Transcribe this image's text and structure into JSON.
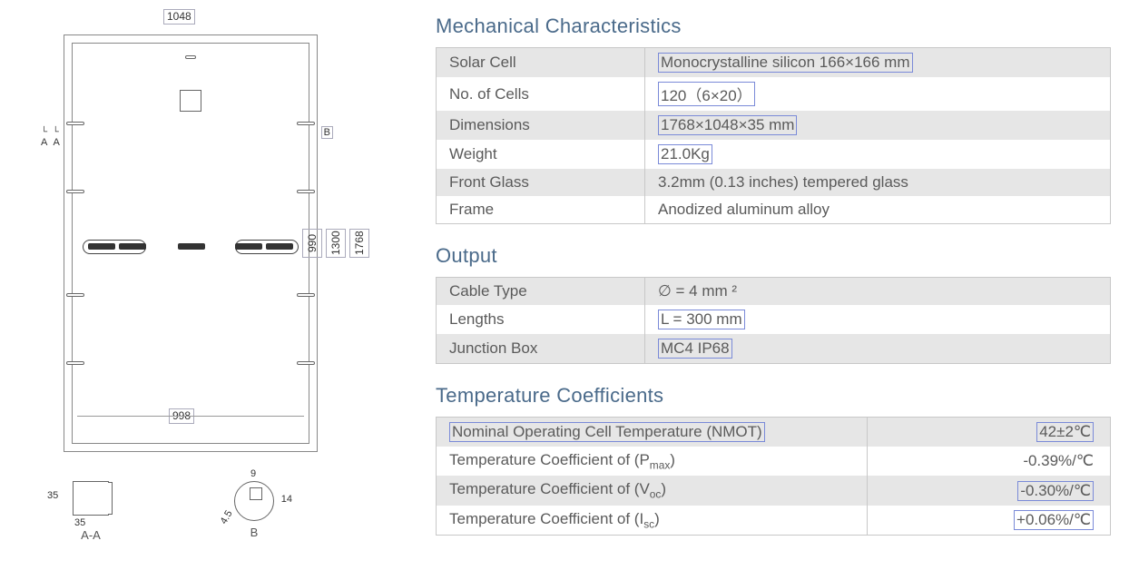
{
  "diagram": {
    "width_label": "1048",
    "mount_width_label": "998",
    "heights": {
      "h1": "990",
      "h2": "1300",
      "h3": "1768"
    },
    "section_aa_label": "A-A",
    "section_b_label": "B",
    "aa_dim1": "35",
    "aa_dim2": "35",
    "b_dim1": "9",
    "b_dim2": "14",
    "b_dim3": "4.5",
    "b_mark": "B",
    "aa_mark_top": "A",
    "aa_mark_top2": "A"
  },
  "mech": {
    "title": "Mechanical Characteristics",
    "rows": [
      {
        "k": "Solar Cell",
        "v": "Monocrystalline silicon 166×166 mm",
        "hl": true
      },
      {
        "k": "No. of Cells",
        "v": "120（6×20）",
        "hl": true
      },
      {
        "k": "Dimensions",
        "v": "1768×1048×35 mm",
        "hl": true
      },
      {
        "k": "Weight",
        "v": "21.0Kg",
        "hl": true
      },
      {
        "k": "Front Glass",
        "v": "3.2mm (0.13 inches) tempered glass",
        "hl": false
      },
      {
        "k": "Frame",
        "v": "Anodized aluminum alloy",
        "hl": false
      }
    ]
  },
  "output": {
    "title": "Output",
    "rows": [
      {
        "k": "Cable Type",
        "v": "∅ = 4 mm ²",
        "hl": false
      },
      {
        "k": "Lengths",
        "v": "L = 300 mm",
        "hl": true
      },
      {
        "k": "Junction Box",
        "v": "MC4  IP68",
        "hl": true
      }
    ]
  },
  "temp": {
    "title": "Temperature Coefficients",
    "rows": [
      {
        "k": "Nominal Operating Cell Temperature (NMOT)",
        "v": "42±2℃",
        "khl": true,
        "vhl": true
      },
      {
        "k": "Temperature Coefficient of (P<sub>max</sub>)",
        "v": "-0.39%/℃",
        "khl": false,
        "vhl": false
      },
      {
        "k": "Temperature Coefficient of (V<sub>oc</sub>)",
        "v": "-0.30%/℃",
        "khl": false,
        "vhl": true
      },
      {
        "k": "Temperature Coefficient of (I<sub>sc</sub>)",
        "v": "+0.06%/℃",
        "khl": false,
        "vhl": true
      }
    ]
  },
  "colors": {
    "heading": "#4a6a8a",
    "row_shade": "#e6e6e6",
    "border": "#c8c8c8",
    "highlight_border": "#7a8ad8"
  }
}
